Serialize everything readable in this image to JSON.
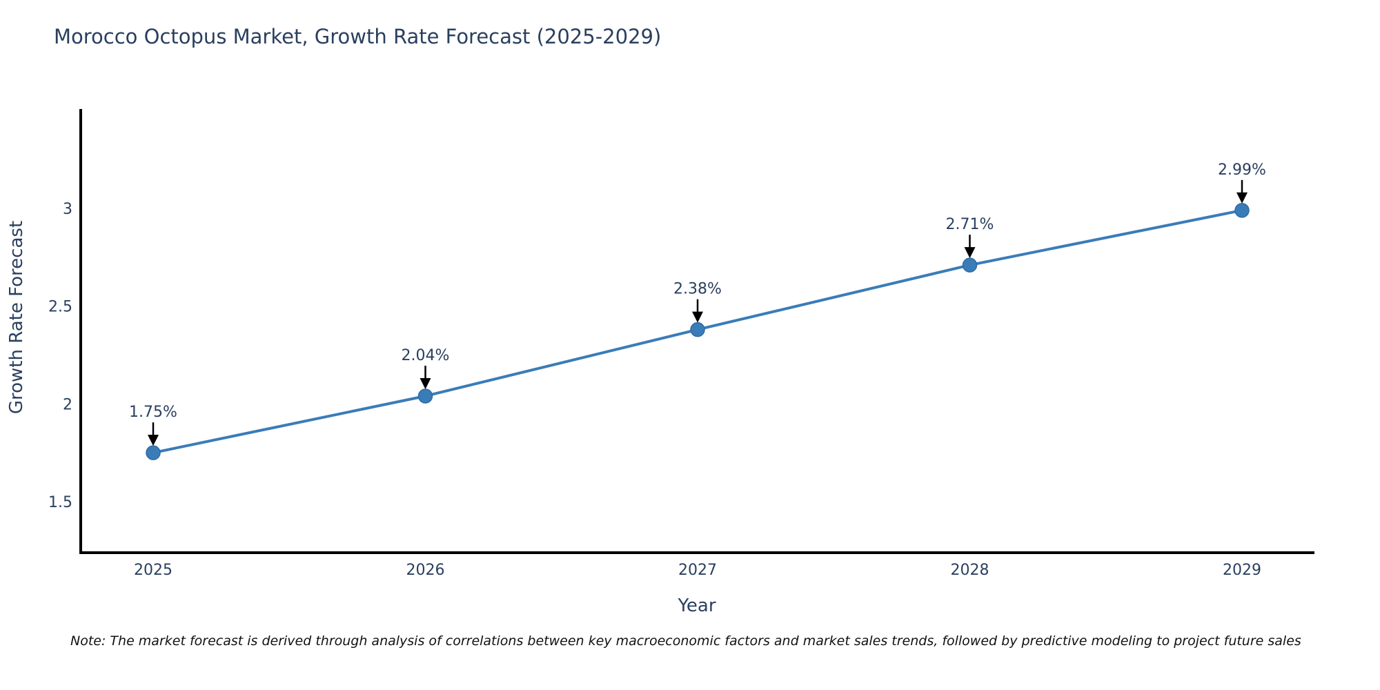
{
  "title": "Morocco Octopus Market, Growth Rate Forecast (2025-2029)",
  "note": "Note: The market forecast is derived through analysis of correlations between key macroeconomic factors and market sales trends, followed by predictive modeling to project future sales",
  "chart_data": {
    "type": "line",
    "title": "Morocco Octopus Market, Growth Rate Forecast (2025-2029)",
    "x": [
      "2025",
      "2026",
      "2027",
      "2028",
      "2029"
    ],
    "values": [
      1.75,
      2.04,
      2.38,
      2.71,
      2.99
    ],
    "point_labels": [
      "1.75%",
      "2.04%",
      "2.38%",
      "2.71%",
      "2.99%"
    ],
    "xlabel": "Year",
    "ylabel": "Growth Rate Forecast",
    "yticks": [
      1.5,
      2,
      2.5,
      3
    ],
    "ytick_labels": [
      "1.5",
      "2",
      "2.5",
      "3"
    ],
    "ylim": [
      1.24,
      3.5
    ],
    "grid": false,
    "legend": false,
    "line_color": "#3a7cb8",
    "marker_color": "#3a7cb8",
    "marker_edge_color": "#2f6ba3",
    "annotation_text_color": "#2a3f5f",
    "annotation_arrow_color": "#000000",
    "axis_line_color": "#000000",
    "tick_text_color": "#2a3f5f",
    "axis_title_color": "#2a3f5f"
  }
}
